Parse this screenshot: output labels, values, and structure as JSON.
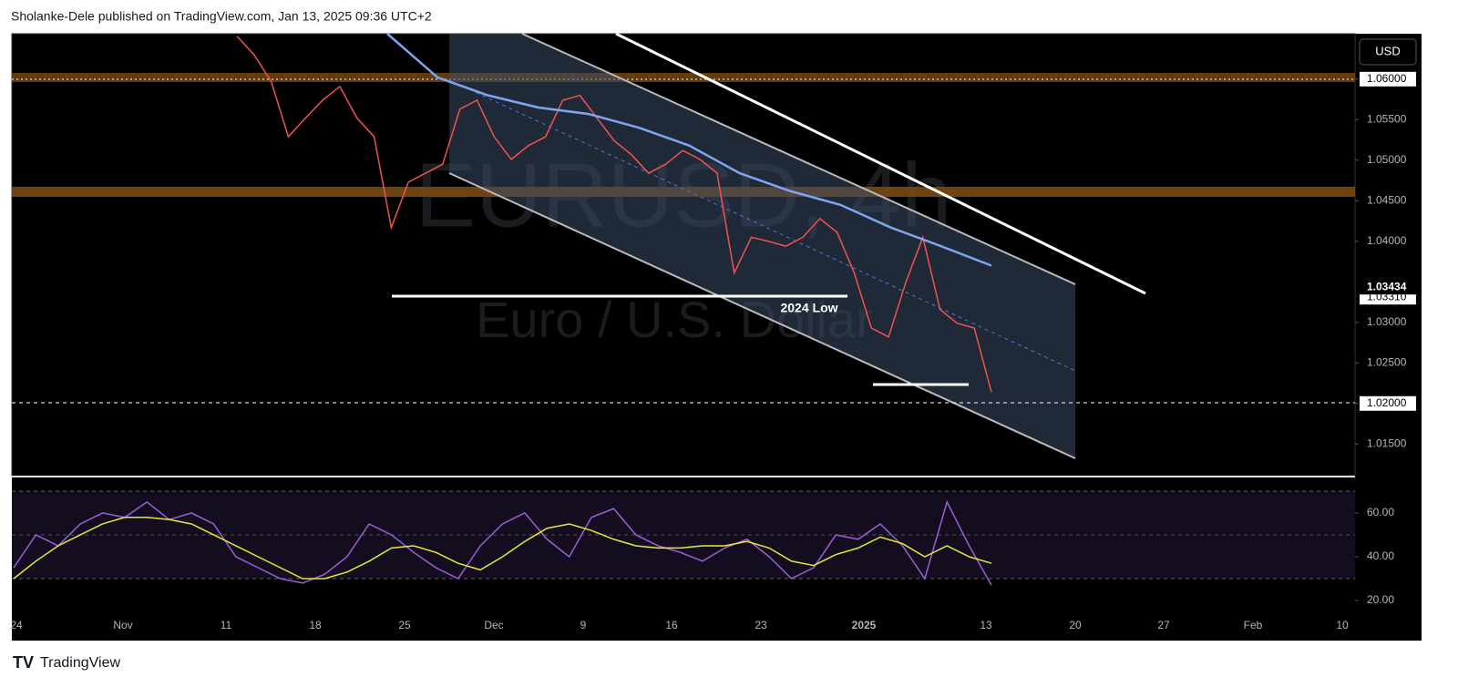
{
  "header": "Sholanke-Dele published on TradingView.com, Jan 13, 2025 09:36 UTC+2",
  "footer": "TradingView",
  "currency": "USD",
  "chart_data": [
    {
      "type": "line",
      "title": "EURUSD, 4h",
      "subtitle": "Euro / U.S. Dollar",
      "annotations": [
        "2024 Low"
      ],
      "price_labels": [
        {
          "value": 1.03434,
          "label": "1.03434"
        },
        {
          "value": 1.0331,
          "label": "1.03310"
        }
      ],
      "ylim": [
        1.0111,
        1.0656
      ],
      "yticks": [
        {
          "value": 1.06,
          "label": "1.06000"
        },
        {
          "value": 1.055,
          "label": "1.05500"
        },
        {
          "value": 1.05,
          "label": "1.05000"
        },
        {
          "value": 1.045,
          "label": "1.04500"
        },
        {
          "value": 1.04,
          "label": "1.04000"
        },
        {
          "value": 1.03,
          "label": "1.03000"
        },
        {
          "value": 1.025,
          "label": "1.02500"
        },
        {
          "value": 1.02,
          "label": "1.02000"
        },
        {
          "value": 1.015,
          "label": "1.01500"
        }
      ],
      "series": [
        {
          "name": "EURUSD",
          "color": "#ef5350",
          "values": [
            1.0653,
            1.063,
            1.0597,
            1.0529,
            1.0552,
            1.0574,
            1.0591,
            1.0552,
            1.0529,
            1.0417,
            1.0473,
            1.0484,
            1.0495,
            1.0563,
            1.0574,
            1.0529,
            1.0501,
            1.0518,
            1.0529,
            1.0574,
            1.058,
            1.0552,
            1.0524,
            1.0507,
            1.0484,
            1.0495,
            1.0512,
            1.0501,
            1.0484,
            1.0361,
            1.0405,
            1.04,
            1.0394,
            1.0405,
            1.0428,
            1.0411,
            1.0361,
            1.0293,
            1.0282,
            1.0349,
            1.0405,
            1.0316,
            1.0299,
            1.0293,
            1.0214
          ]
        },
        {
          "name": "MA",
          "color": "#7ea6f0",
          "values": [
            1.0656,
            1.0602,
            1.058,
            1.0565,
            1.0557,
            1.054,
            1.0518,
            1.0484,
            1.0462,
            1.0445,
            1.0417,
            1.0394,
            1.037
          ]
        }
      ]
    },
    {
      "type": "line",
      "ylim": [
        14.6,
        75.8
      ],
      "yticks": [
        {
          "value": 60,
          "label": "60.00"
        },
        {
          "value": 40,
          "label": "40.00"
        },
        {
          "value": 20,
          "label": "20.00"
        }
      ],
      "x_labels": [
        "24",
        "Nov",
        "11",
        "18",
        "25",
        "Dec",
        "9",
        "16",
        "23",
        "2025",
        "13",
        "20",
        "27",
        "Feb",
        "10"
      ],
      "series": [
        {
          "name": "RSI",
          "color": "#9c5fd6",
          "values": [
            35,
            50,
            45,
            55,
            60,
            58,
            65,
            57,
            60,
            55,
            40,
            35,
            30,
            28,
            32,
            40,
            55,
            50,
            42,
            35,
            30,
            45,
            55,
            60,
            48,
            40,
            58,
            62,
            50,
            45,
            42,
            38,
            44,
            48,
            40,
            30,
            35,
            50,
            48,
            55,
            45,
            30,
            65,
            45,
            27
          ]
        },
        {
          "name": "Signal",
          "color": "#e8e83a",
          "values": [
            30,
            38,
            45,
            50,
            55,
            58,
            58,
            57,
            55,
            50,
            45,
            40,
            35,
            30,
            30,
            33,
            38,
            44,
            45,
            42,
            37,
            34,
            40,
            47,
            53,
            55,
            52,
            48,
            45,
            44,
            44,
            45,
            45,
            47,
            44,
            38,
            36,
            41,
            44,
            49,
            46,
            40,
            45,
            40,
            37
          ]
        }
      ]
    }
  ]
}
